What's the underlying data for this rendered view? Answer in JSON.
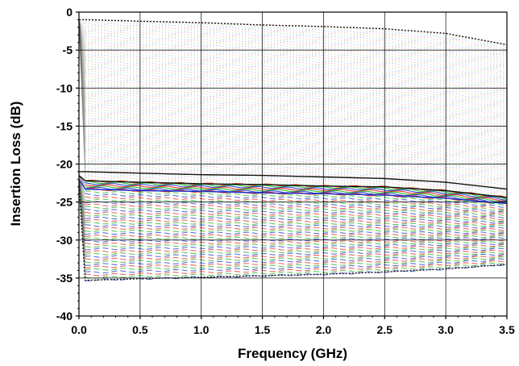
{
  "chart_data": {
    "type": "line",
    "title": "",
    "xlabel": "Frequency (GHz)",
    "ylabel": "Insertion Loss (dB)",
    "xlim": [
      0,
      3.5
    ],
    "ylim": [
      -40,
      0
    ],
    "x_ticks": [
      "0.0",
      "0.5",
      "1.0",
      "1.5",
      "2.0",
      "2.5",
      "3.0",
      "3.5"
    ],
    "y_ticks": [
      "0",
      "-5",
      "-10",
      "-15",
      "-20",
      "-25",
      "-30",
      "-35",
      "-40"
    ],
    "grid": true,
    "legend": "none",
    "series_colors": [
      "#e8311f",
      "#21b51e",
      "#2a3fd6"
    ],
    "x": [
      0.0,
      0.05,
      0.5,
      1.0,
      1.5,
      2.0,
      2.5,
      3.0,
      3.5
    ],
    "series": [
      {
        "values": [
          -1.0,
          -1.0,
          -1.2,
          -1.4,
          -1.7,
          -1.9,
          -2.2,
          -2.8,
          -4.3
        ]
      },
      {
        "values": [
          -21.0,
          -21.0,
          -21.2,
          -21.4,
          -21.5,
          -21.7,
          -21.9,
          -22.4,
          -23.3
        ]
      },
      {
        "values": [
          -21.5,
          -22.2,
          -22.4,
          -22.6,
          -22.7,
          -22.9,
          -23.0,
          -23.5,
          -24.4
        ]
      },
      {
        "values": [
          -22.0,
          -23.3,
          -23.5,
          -23.6,
          -23.8,
          -23.9,
          -24.1,
          -24.5,
          -25.2
        ]
      },
      {
        "values": [
          -22.5,
          -35.3,
          -35.1,
          -34.9,
          -34.7,
          -34.5,
          -34.2,
          -33.8,
          -33.2
        ]
      }
    ]
  }
}
